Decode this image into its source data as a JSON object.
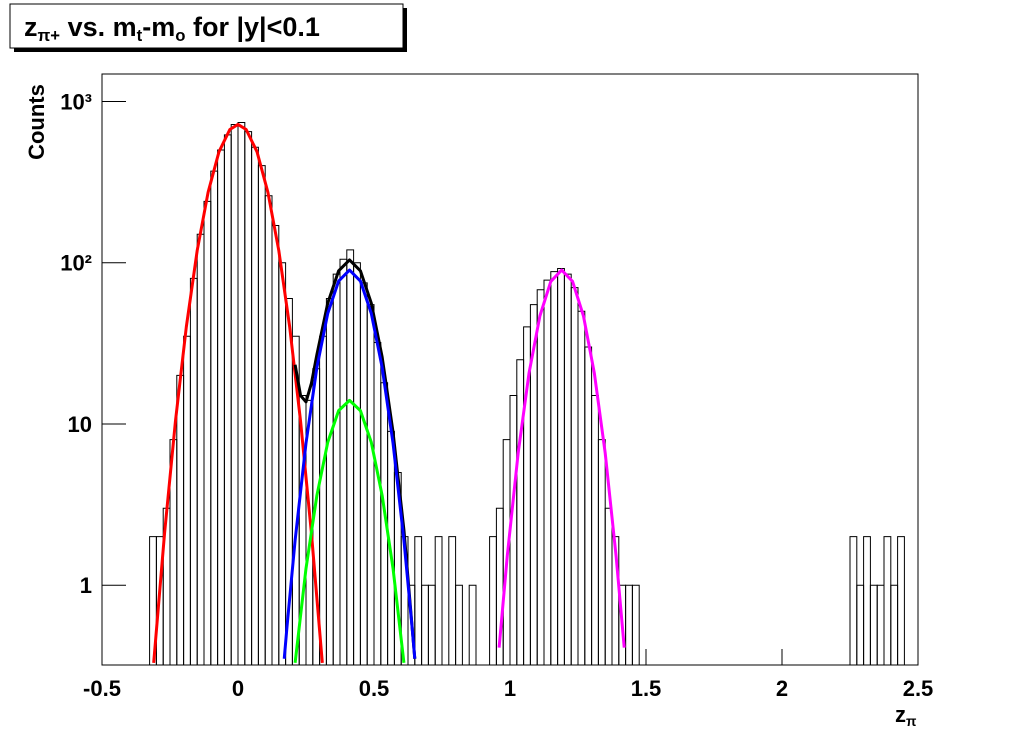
{
  "chart_data": {
    "type": "histogram",
    "title": [
      {
        "text": "z"
      },
      {
        "text": "π+",
        "sub": true
      },
      {
        "text": " vs. m"
      },
      {
        "text": "t",
        "sub": true
      },
      {
        "text": "-m"
      },
      {
        "text": "o",
        "sub": true
      },
      {
        "text": " for |y|<0.1"
      }
    ],
    "x_label": [
      {
        "text": "z"
      },
      {
        "text": "π",
        "sub": true
      }
    ],
    "y_label": "Counts",
    "log_y": true,
    "grid": false,
    "xlim": [
      -0.5,
      2.5
    ],
    "ylim": [
      0.32,
      1480
    ],
    "xticks": [
      -0.5,
      0,
      0.5,
      1,
      1.5,
      2,
      2.5
    ],
    "yticks": [
      1,
      10,
      {
        "value": 100,
        "label": "10²"
      },
      {
        "value": 1000,
        "label": "10³"
      }
    ],
    "color": "#000000",
    "bins": [
      -0.5,
      -0.475,
      -0.45,
      -0.425,
      -0.4,
      -0.375,
      -0.35,
      -0.325,
      -0.3,
      -0.275,
      -0.25,
      -0.225,
      -0.2,
      -0.175,
      -0.15,
      -0.125,
      -0.1,
      -0.075,
      -0.05,
      -0.025,
      0,
      0.025,
      0.05,
      0.075,
      0.1,
      0.125,
      0.15,
      0.175,
      0.2,
      0.225,
      0.25,
      0.275,
      0.3,
      0.325,
      0.35,
      0.375,
      0.4,
      0.425,
      0.45,
      0.475,
      0.5,
      0.525,
      0.55,
      0.575,
      0.6,
      0.625,
      0.65,
      0.675,
      0.7,
      0.725,
      0.75,
      0.775,
      0.8,
      0.825,
      0.85,
      0.875,
      0.9,
      0.925,
      0.95,
      0.975,
      1,
      1.025,
      1.05,
      1.075,
      1.1,
      1.125,
      1.15,
      1.175,
      1.2,
      1.225,
      1.25,
      1.275,
      1.3,
      1.325,
      1.35,
      1.375,
      1.4,
      1.425,
      1.45,
      1.475,
      1.5,
      1.525,
      1.55,
      1.575,
      1.6,
      1.625,
      1.65,
      1.675,
      1.7,
      1.725,
      1.75,
      1.775,
      1.8,
      1.825,
      1.85,
      1.875,
      1.9,
      1.925,
      1.95,
      1.975,
      2,
      2.025,
      2.05,
      2.075,
      2.1,
      2.125,
      2.15,
      2.175,
      2.2,
      2.225,
      2.25,
      2.275,
      2.3,
      2.325,
      2.35,
      2.375,
      2.4,
      2.425,
      2.45,
      2.475,
      2.5
    ],
    "values": [
      0,
      0,
      0,
      0,
      0,
      0,
      0,
      2,
      2,
      3,
      8,
      20,
      35,
      80,
      150,
      240,
      370,
      500,
      620,
      720,
      740,
      650,
      520,
      400,
      260,
      170,
      100,
      60,
      35,
      15,
      14,
      22,
      35,
      60,
      85,
      105,
      120,
      100,
      75,
      55,
      32,
      18,
      9,
      5,
      2,
      1,
      2,
      1,
      1,
      2,
      0,
      2,
      1,
      0,
      1,
      0,
      0,
      2,
      3,
      8,
      15,
      25,
      40,
      55,
      68,
      78,
      88,
      92,
      85,
      70,
      50,
      30,
      15,
      8,
      3,
      2,
      1,
      1,
      1,
      0,
      0,
      0,
      0,
      0,
      0,
      0,
      0,
      0,
      0,
      0,
      0,
      0,
      0,
      0,
      0,
      0,
      0,
      0,
      0,
      0,
      0,
      0,
      0,
      0,
      0,
      0,
      0,
      0,
      0,
      0,
      2,
      1,
      2,
      1,
      1,
      2,
      1,
      2,
      0,
      0
    ],
    "curves": [
      {
        "color": "#ff0000",
        "x": [
          -0.31,
          -0.27,
          -0.23,
          -0.19,
          -0.15,
          -0.11,
          -0.07,
          -0.03,
          0,
          0.03,
          0.07,
          0.11,
          0.15,
          0.19,
          0.23,
          0.27,
          0.31
        ],
        "values": [
          0.33,
          2.1,
          10.4,
          40,
          119,
          273,
          487,
          670,
          720,
          670,
          487,
          273,
          119,
          40,
          10.4,
          2.1,
          0.33
        ]
      },
      {
        "color": "#000000",
        "x": [
          0.21,
          0.23,
          0.25,
          0.27,
          0.29,
          0.33,
          0.37,
          0.41,
          0.45,
          0.49,
          0.53,
          0.57,
          0.61,
          0.65
        ],
        "values": [
          23.3,
          15,
          13.7,
          17.9,
          26.9,
          56.2,
          89.1,
          104,
          89.1,
          56.2,
          26,
          8.9,
          2.2,
          0.35
        ]
      },
      {
        "color": "#0000ff",
        "x": [
          0.17,
          0.18,
          0.21,
          0.25,
          0.29,
          0.33,
          0.37,
          0.41,
          0.45,
          0.49,
          0.53,
          0.57,
          0.61,
          0.64,
          0.65
        ],
        "values": [
          0.35,
          0.55,
          1.9,
          7.6,
          22.4,
          48.5,
          77,
          90,
          77,
          48.5,
          22.4,
          7.6,
          1.9,
          0.55,
          0.35
        ]
      },
      {
        "color": "#00ff00",
        "x": [
          0.21,
          0.25,
          0.29,
          0.33,
          0.37,
          0.41,
          0.45,
          0.49,
          0.53,
          0.57,
          0.61
        ],
        "values": [
          0.33,
          1.27,
          3.6,
          7.7,
          12.1,
          14,
          12.1,
          7.7,
          3.6,
          1.27,
          0.33
        ]
      },
      {
        "color": "#ff00ff",
        "x": [
          0.96,
          0.99,
          1.03,
          1.07,
          1.11,
          1.15,
          1.19,
          1.23,
          1.27,
          1.31,
          1.35,
          1.39,
          1.42
        ],
        "values": [
          0.41,
          1.52,
          6.6,
          20.7,
          46.8,
          76.5,
          90,
          76.5,
          46.8,
          20.7,
          6.6,
          1.52,
          0.41
        ]
      }
    ]
  }
}
